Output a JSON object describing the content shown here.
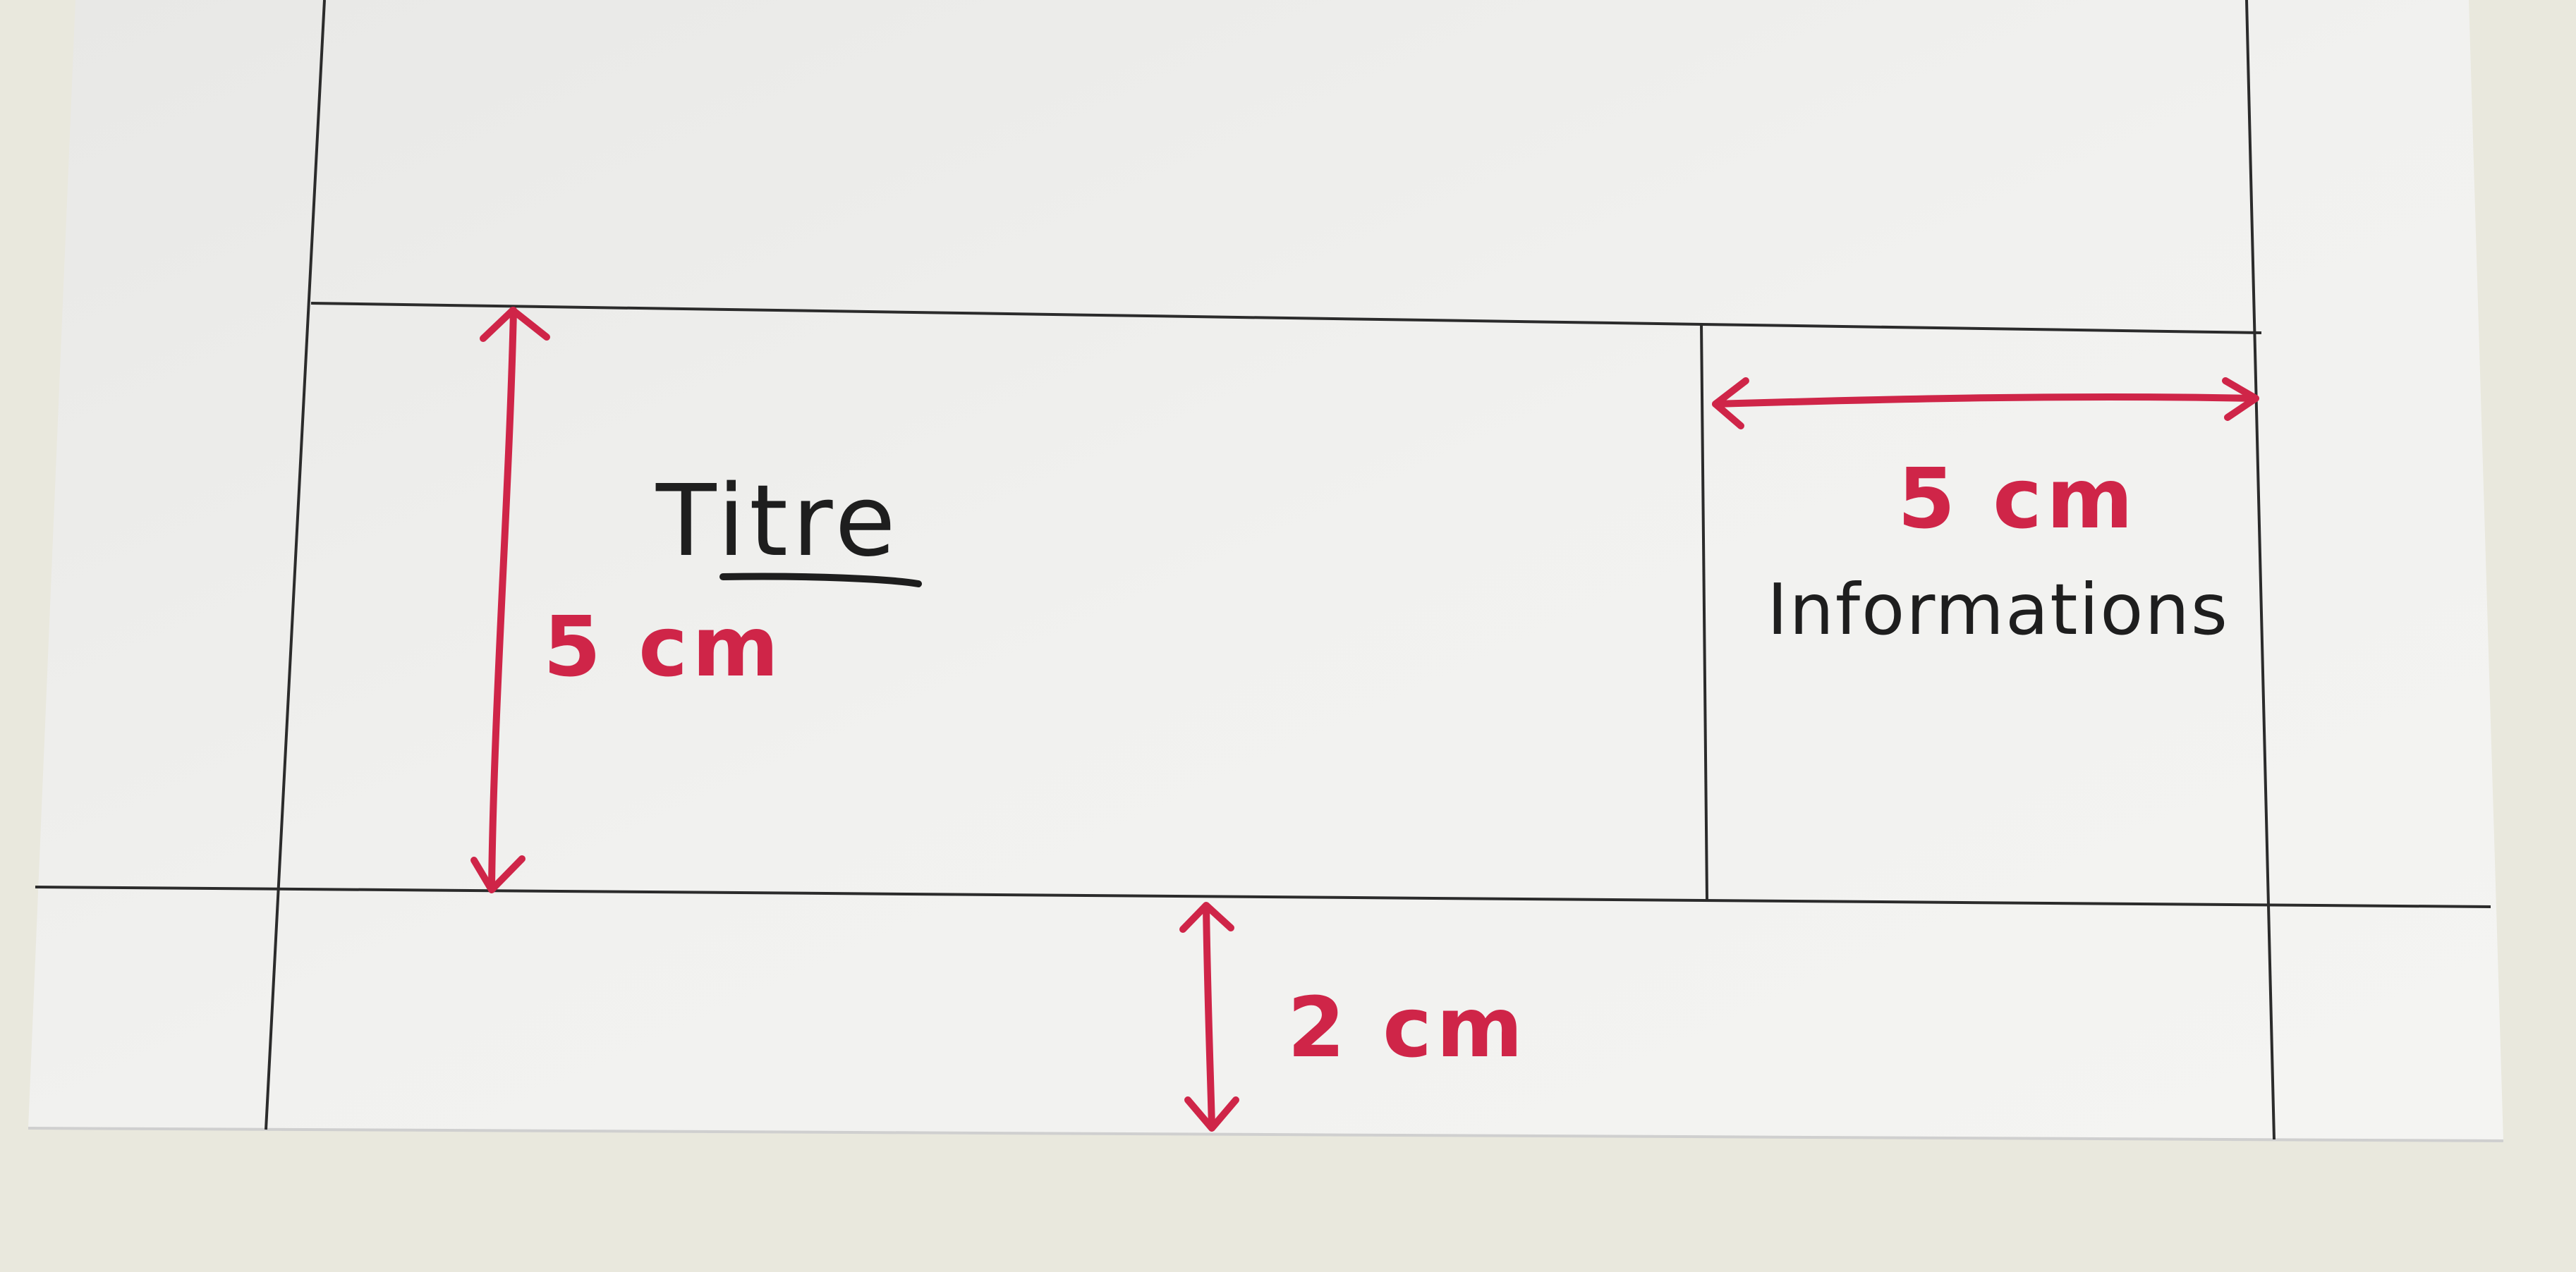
{
  "sketch": {
    "title_label": "Titre",
    "title_height": "5 cm",
    "info_width": "5 cm",
    "info_label": "Informations",
    "bottom_margin": "2 cm"
  },
  "colors": {
    "paper": "#f0f0f0",
    "background": "#e9e8dd",
    "pencil_lines": "#2b2b2b",
    "red_marker": "#cf2548",
    "black_marker": "#1e1e1e"
  }
}
